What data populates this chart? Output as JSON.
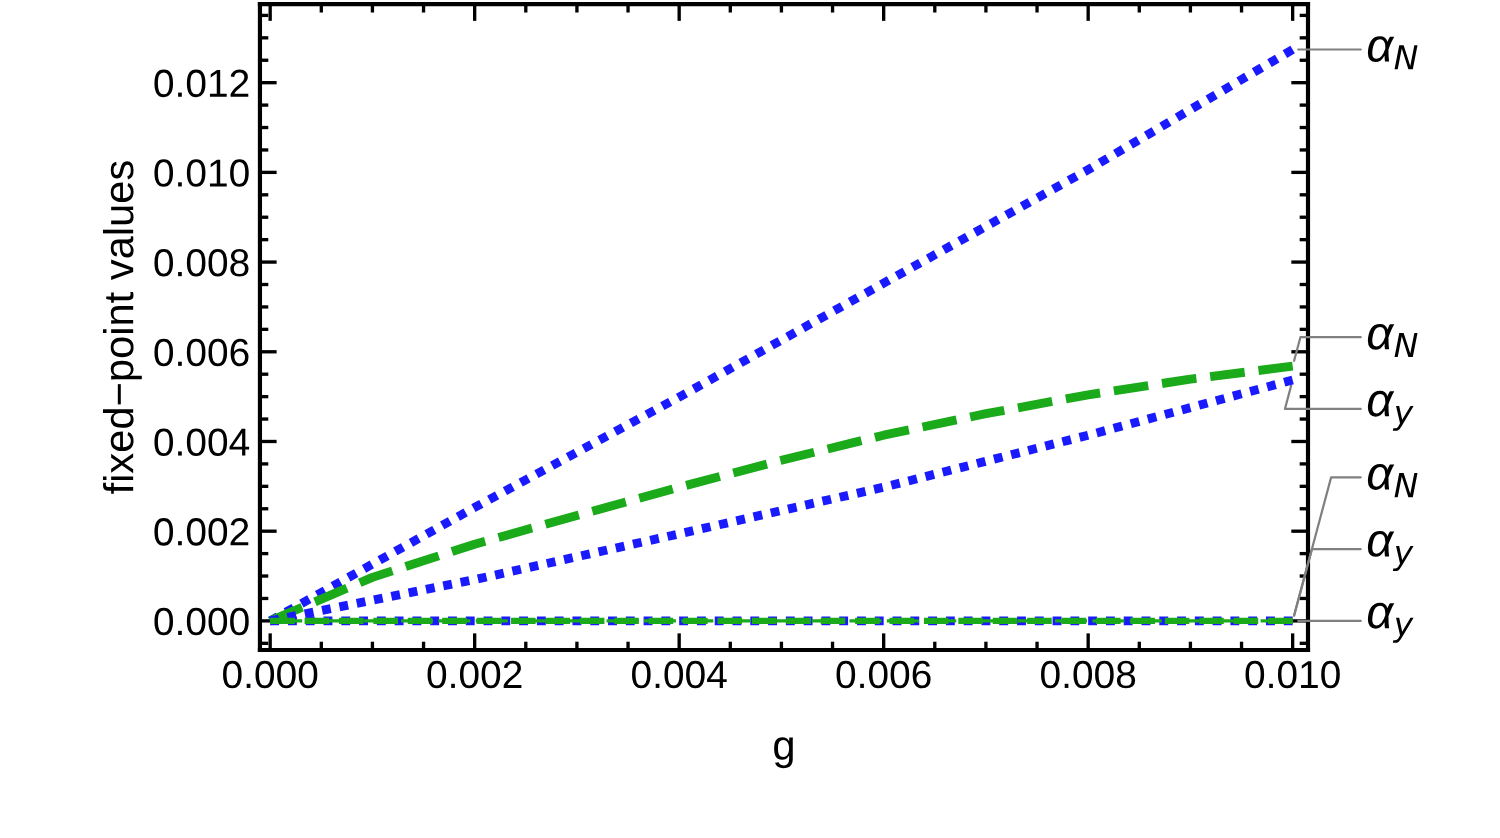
{
  "chart_data": {
    "type": "line",
    "xlabel": "g",
    "ylabel": "fixed−point values",
    "series": [
      {
        "name": "α$_{N}$",
        "color": "#1a1aff",
        "line_style": "dotted",
        "x": [
          0,
          0.002,
          0.004,
          0.006,
          0.008,
          0.01
        ],
        "values": [
          0,
          0.00253,
          0.00499,
          0.00753,
          0.01006,
          0.01274
        ]
      },
      {
        "name": "α$_{N}$",
        "color": "#1aaa1a",
        "line_style": "dashed",
        "x": [
          0,
          0.001,
          0.002,
          0.003,
          0.004,
          0.005,
          0.006,
          0.007,
          0.008,
          0.009,
          0.01
        ],
        "values": [
          0,
          0.00097,
          0.00171,
          0.00235,
          0.00298,
          0.00358,
          0.00414,
          0.00462,
          0.00504,
          0.00539,
          0.00568
        ]
      },
      {
        "name": "α$_{y}$",
        "color": "#1a1aff",
        "line_style": "dotted",
        "x": [
          0,
          0.002,
          0.004,
          0.006,
          0.008,
          0.01
        ],
        "values": [
          0,
          0.00092,
          0.00194,
          0.00298,
          0.00414,
          0.00537
        ]
      },
      {
        "name": "α$_{N}$",
        "color": "#1a1aff",
        "line_style": "dotted",
        "x": [
          0,
          0.01
        ],
        "values": [
          0,
          0
        ]
      },
      {
        "name": "α$_{y}$",
        "color": "#1aaa1a",
        "line_style": "dashed",
        "x": [
          0,
          0.01
        ],
        "values": [
          0,
          0
        ]
      },
      {
        "name": "α$_{y}$",
        "color": "#1aaa1a",
        "line_style": "dashed",
        "x": [
          0,
          0.01
        ],
        "values": [
          0,
          0
        ]
      }
    ],
    "xlim": [
      -0.0001,
      0.01015
    ],
    "ylim": [
      -0.00065,
      0.01375
    ],
    "xticks": [
      {
        "value": 0,
        "label": "0.000"
      },
      {
        "value": 0.002,
        "label": "0.002"
      },
      {
        "value": 0.004,
        "label": "0.004"
      },
      {
        "value": 0.006,
        "label": "0.006"
      },
      {
        "value": 0.008,
        "label": "0.008"
      },
      {
        "value": 0.01,
        "label": "0.010"
      }
    ],
    "yticks": [
      {
        "value": 0,
        "label": "0.000"
      },
      {
        "value": 0.002,
        "label": "0.002"
      },
      {
        "value": 0.004,
        "label": "0.004"
      },
      {
        "value": 0.006,
        "label": "0.006"
      },
      {
        "value": 0.008,
        "label": "0.008"
      },
      {
        "value": 0.01,
        "label": "0.010"
      },
      {
        "value": 0.012,
        "label": "0.012"
      }
    ],
    "grid": false,
    "legend": false,
    "marker": "none"
  }
}
